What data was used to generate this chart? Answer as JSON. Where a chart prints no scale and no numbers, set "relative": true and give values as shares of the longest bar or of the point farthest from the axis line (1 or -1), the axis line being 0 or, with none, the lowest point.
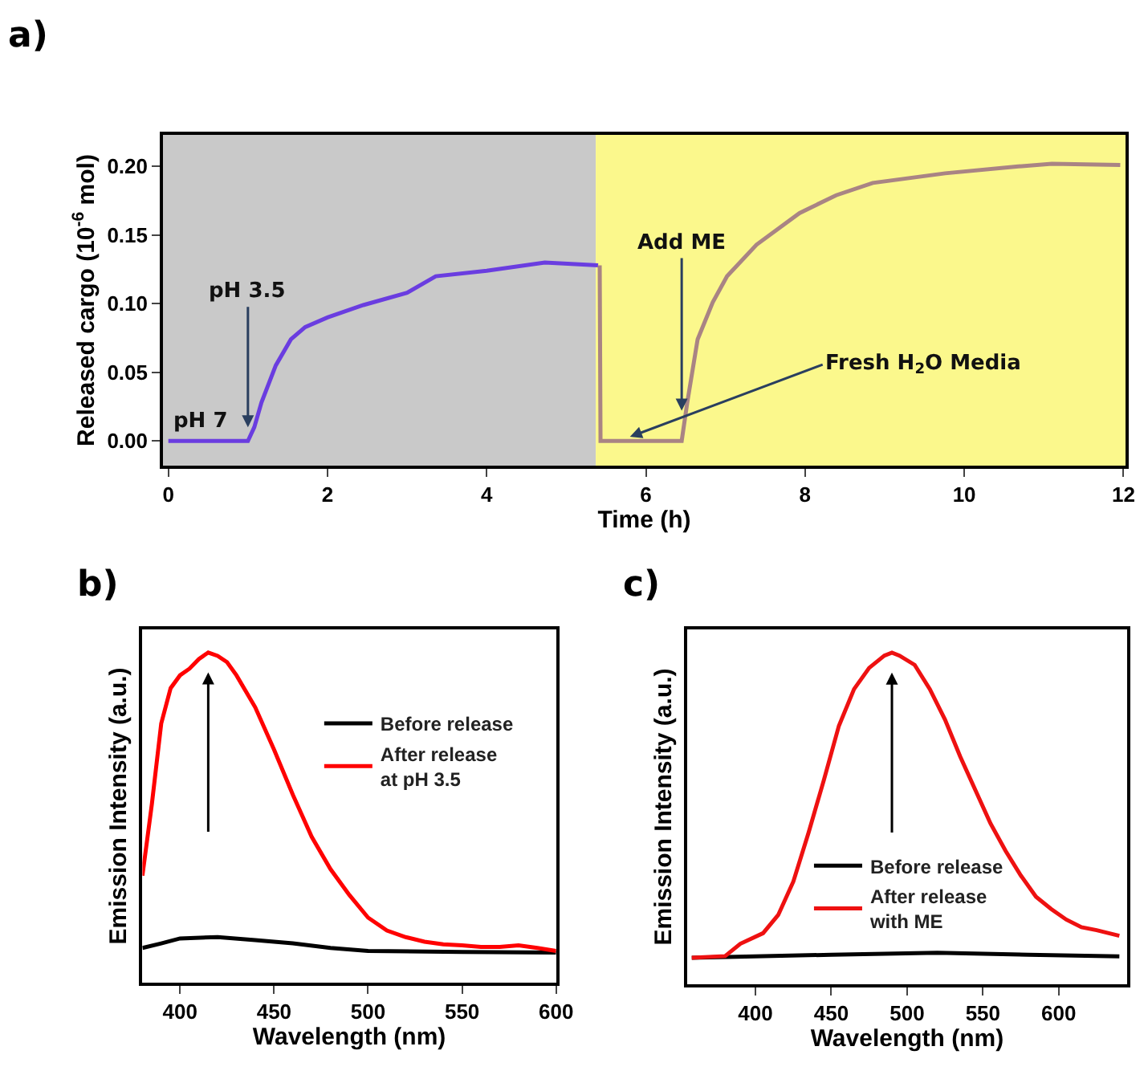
{
  "chart_data": [
    {
      "type": "line",
      "title": "a)",
      "xlabel": "Time (h)",
      "ylabel": "Released cargo (10$^{-6}$ mol)",
      "xlim": [
        -0.07,
        12.03
      ],
      "xticks": [
        0,
        2,
        4,
        6,
        8,
        10,
        12
      ],
      "ylim": [
        -0.018,
        0.223
      ],
      "yticks": [
        {
          "value": 0,
          "label": "0.00"
        },
        {
          "value": 0.05,
          "label": "0.05"
        },
        {
          "value": 0.1,
          "label": "0.10"
        },
        {
          "value": 0.15,
          "label": "0.15"
        },
        {
          "value": 0.2,
          "label": "0.20"
        }
      ],
      "grid": false,
      "legend": false,
      "marker": "none",
      "line_style": "solid",
      "bands": [
        {
          "axis": "x",
          "from": -0.07,
          "to": 5.37,
          "label": null,
          "color": "#c9c9c9"
        },
        {
          "axis": "x",
          "from": 5.37,
          "to": 12.03,
          "label": null,
          "color": "#fbf88c"
        }
      ],
      "series": [
        {
          "color": "#6a3de0",
          "x": [
            0,
            0.5,
            1.0,
            1.08,
            1.17,
            1.35,
            1.54,
            1.72,
            2.0,
            2.45,
            3.0,
            3.36,
            4.0,
            4.73,
            5.4
          ],
          "values": [
            0,
            0,
            0,
            0.01,
            0.028,
            0.055,
            0.074,
            0.083,
            0.09,
            0.099,
            0.108,
            0.12,
            0.124,
            0.13,
            0.128
          ]
        },
        {
          "color": "#a98484",
          "x": [
            5.42,
            5.43,
            6.0,
            6.45,
            6.52,
            6.65,
            6.84,
            7.02,
            7.39,
            7.93,
            8.39,
            8.85,
            9.76,
            10.68,
            11.1,
            11.96
          ],
          "values": [
            0.128,
            0,
            0,
            0,
            0.028,
            0.074,
            0.101,
            0.12,
            0.143,
            0.166,
            0.179,
            0.188,
            0.195,
            0.2,
            0.202,
            0.201
          ]
        }
      ],
      "annotations": [
        {
          "text": "pH 7",
          "x": 0.4,
          "y": 0.003
        },
        {
          "text": "pH 3.5",
          "x": 1.0,
          "y": 0.01
        },
        {
          "text": "Add ME",
          "x": 6.45,
          "y": 0.022
        },
        {
          "text": "Fresh H$_{2}$O Media",
          "x": 5.8,
          "y": 0.003
        }
      ]
    },
    {
      "type": "line",
      "title": "b)",
      "xlabel": "Wavelength (nm)",
      "ylabel": "Emission Intensity (a.u.)",
      "relative": true,
      "xlim": [
        380,
        600
      ],
      "xticks": [
        400,
        450,
        500,
        550,
        600
      ],
      "grid": false,
      "legend": "top right",
      "marker": "none",
      "line_style": "solid",
      "series": [
        {
          "name": "Before release",
          "color": "#000000",
          "x": [
            380,
            390,
            400,
            420,
            440,
            460,
            480,
            500,
            550,
            600
          ],
          "values": [
            0.105,
            0.119,
            0.134,
            0.138,
            0.129,
            0.119,
            0.105,
            0.096,
            0.093,
            0.091
          ]
        },
        {
          "name": "After release\nat pH 3.5",
          "color": "#ff0000",
          "x": [
            380,
            385,
            390,
            395,
            400,
            405,
            410,
            415,
            420,
            425,
            430,
            440,
            450,
            460,
            470,
            480,
            490,
            500,
            510,
            520,
            530,
            540,
            550,
            560,
            570,
            580,
            590,
            600
          ],
          "values": [
            0.324,
            0.54,
            0.785,
            0.892,
            0.931,
            0.951,
            0.98,
            1.0,
            0.99,
            0.971,
            0.931,
            0.834,
            0.706,
            0.569,
            0.442,
            0.344,
            0.266,
            0.197,
            0.158,
            0.138,
            0.124,
            0.116,
            0.113,
            0.108,
            0.108,
            0.113,
            0.105,
            0.096
          ]
        }
      ]
    },
    {
      "type": "line",
      "title": "c)",
      "xlabel": "Wavelength (nm)",
      "ylabel": "Emission Intensity (a.u.)",
      "relative": true,
      "xlim": [
        355,
        645
      ],
      "xticks": [
        400,
        450,
        500,
        550,
        600
      ],
      "grid": false,
      "legend": "bottom",
      "marker": "none",
      "line_style": "solid",
      "series": [
        {
          "name": "Before release",
          "color": "#000000",
          "x": [
            358,
            450,
            520,
            580,
            640
          ],
          "values": [
            0.08,
            0.089,
            0.095,
            0.089,
            0.084
          ]
        },
        {
          "name": "After release\nwith ME",
          "color": "#ee1111",
          "x": [
            358,
            380,
            390,
            405,
            415,
            425,
            435,
            445,
            455,
            465,
            475,
            485,
            490,
            495,
            505,
            515,
            525,
            535,
            545,
            555,
            565,
            575,
            585,
            595,
            605,
            615,
            625,
            640
          ],
          "values": [
            0.08,
            0.085,
            0.122,
            0.154,
            0.209,
            0.31,
            0.457,
            0.614,
            0.779,
            0.89,
            0.954,
            0.991,
            1.0,
            0.991,
            0.963,
            0.89,
            0.798,
            0.687,
            0.586,
            0.485,
            0.402,
            0.328,
            0.264,
            0.227,
            0.195,
            0.172,
            0.163,
            0.146
          ]
        }
      ]
    }
  ]
}
